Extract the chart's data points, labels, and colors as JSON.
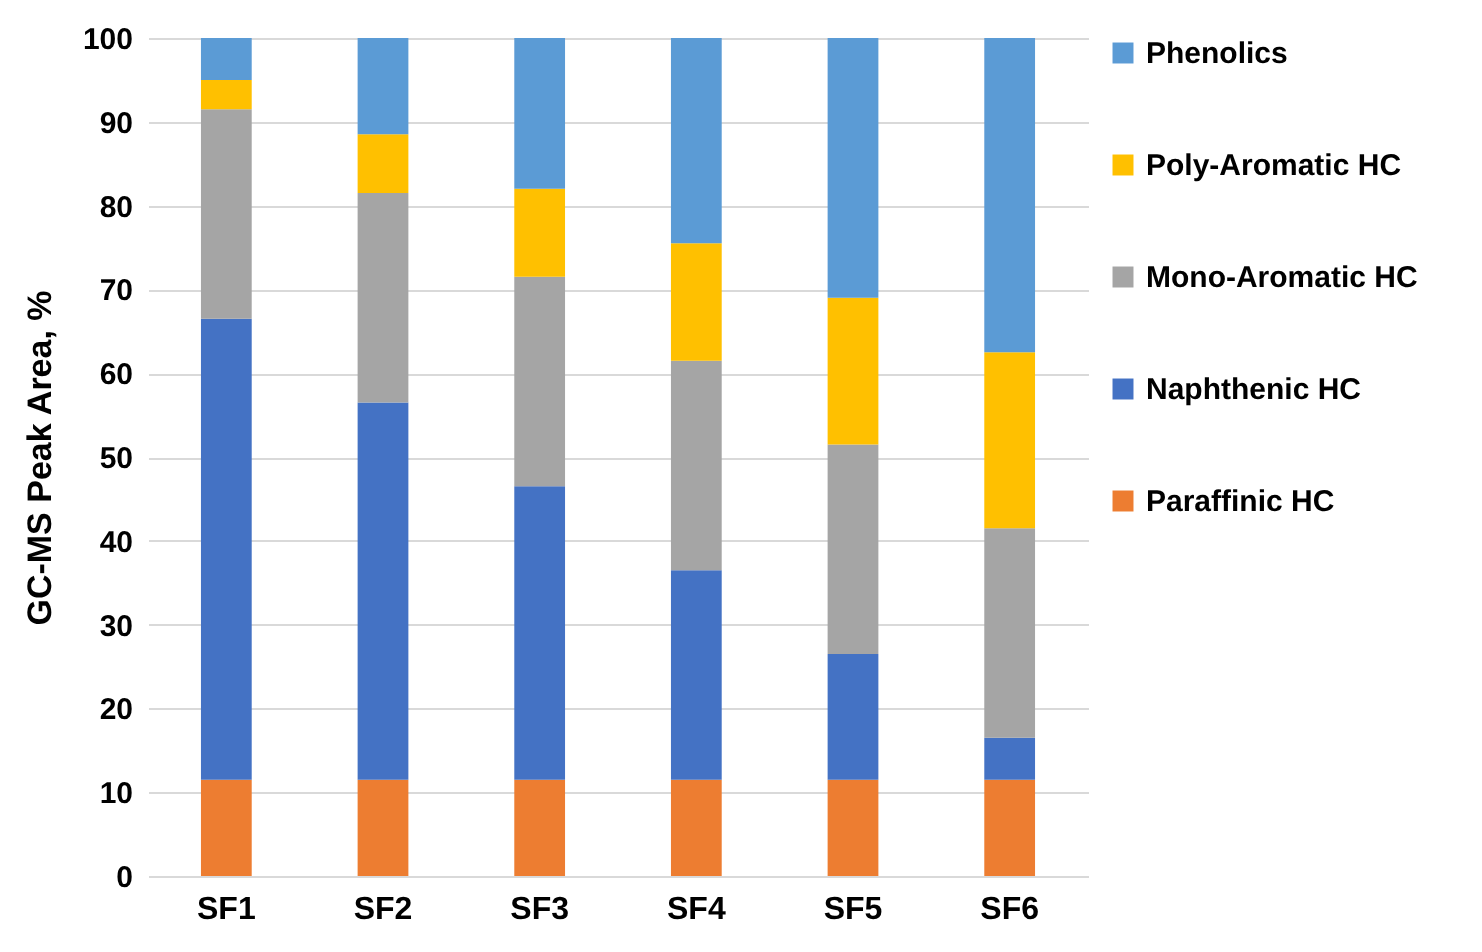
{
  "chart_data": {
    "type": "bar",
    "stacked": true,
    "ylabel": "GC-MS Peak Area, %",
    "categories": [
      "SF1",
      "SF2",
      "SF3",
      "SF4",
      "SF5",
      "SF6"
    ],
    "ylim": [
      0,
      100
    ],
    "yticks": [
      0,
      10,
      20,
      30,
      40,
      50,
      60,
      70,
      80,
      90,
      100
    ],
    "grid": "y",
    "legend": "right",
    "series": [
      {
        "name": "Paraffinic HC",
        "color": "#ed7d31",
        "values": [
          11.5,
          11.5,
          11.5,
          11.5,
          11.5,
          11.5
        ]
      },
      {
        "name": "Naphthenic HC",
        "color": "#4472c4",
        "values": [
          55,
          45,
          35,
          25,
          15,
          5
        ]
      },
      {
        "name": "Mono-Aromatic HC",
        "color": "#a5a5a5",
        "values": [
          25,
          25,
          25,
          25,
          25,
          25
        ]
      },
      {
        "name": "Poly-Aromatic HC",
        "color": "#ffc000",
        "values": [
          3.5,
          7,
          10.5,
          14,
          17.5,
          21
        ]
      },
      {
        "name": "Phenolics",
        "color": "#5b9bd5",
        "values": [
          5,
          11.5,
          18,
          24.5,
          31,
          37.5
        ]
      }
    ]
  }
}
